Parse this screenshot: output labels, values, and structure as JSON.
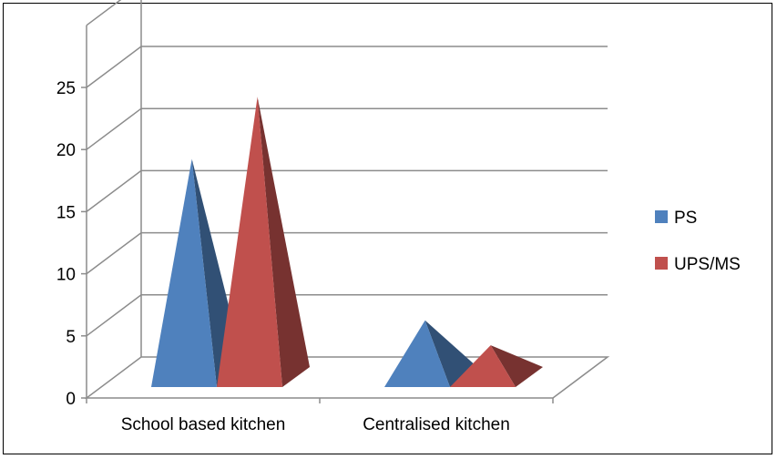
{
  "chart_data": {
    "type": "bar",
    "style": "3d-pyramid",
    "categories": [
      "School based kitchen",
      "Centralised kitchen"
    ],
    "series": [
      {
        "name": "PS",
        "values": [
          18,
          5
        ],
        "color": "#4F81BD"
      },
      {
        "name": "UPS/MS",
        "values": [
          23,
          3
        ],
        "color": "#C0504D"
      }
    ],
    "ylim": [
      0,
      25
    ],
    "yticks": [
      "0",
      "5",
      "10",
      "15",
      "20",
      "25"
    ],
    "grid": true,
    "legend_position": "right"
  }
}
